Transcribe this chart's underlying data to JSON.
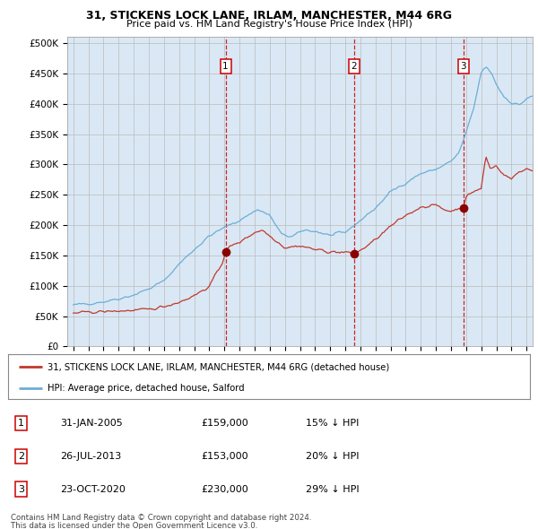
{
  "title1": "31, STICKENS LOCK LANE, IRLAM, MANCHESTER, M44 6RG",
  "title2": "Price paid vs. HM Land Registry's House Price Index (HPI)",
  "bg_color": "#dae8f5",
  "transactions": [
    {
      "num": 1,
      "date_label": "31-JAN-2005",
      "price": 159000,
      "pct": "15%",
      "x": 2005.08
    },
    {
      "num": 2,
      "date_label": "26-JUL-2013",
      "price": 153000,
      "pct": "20%",
      "x": 2013.57
    },
    {
      "num": 3,
      "date_label": "23-OCT-2020",
      "price": 230000,
      "pct": "29%",
      "x": 2020.81
    }
  ],
  "legend_label_red": "31, STICKENS LOCK LANE, IRLAM, MANCHESTER, M44 6RG (detached house)",
  "legend_label_blue": "HPI: Average price, detached house, Salford",
  "footer1": "Contains HM Land Registry data © Crown copyright and database right 2024.",
  "footer2": "This data is licensed under the Open Government Licence v3.0.",
  "ylim": [
    0,
    510000
  ],
  "xlim": [
    1994.6,
    2025.4
  ],
  "hpi_waypoints": [
    [
      1995.0,
      68000
    ],
    [
      1996.0,
      71000
    ],
    [
      1997.0,
      74000
    ],
    [
      1998.0,
      79000
    ],
    [
      1999.0,
      85000
    ],
    [
      2000.0,
      95000
    ],
    [
      2001.0,
      108000
    ],
    [
      2002.0,
      136000
    ],
    [
      2003.0,
      160000
    ],
    [
      2004.0,
      182000
    ],
    [
      2005.0,
      196000
    ],
    [
      2006.0,
      208000
    ],
    [
      2007.2,
      226000
    ],
    [
      2008.0,
      216000
    ],
    [
      2008.8,
      184000
    ],
    [
      2009.5,
      181000
    ],
    [
      2010.3,
      192000
    ],
    [
      2011.0,
      190000
    ],
    [
      2012.0,
      183000
    ],
    [
      2013.0,
      188000
    ],
    [
      2014.0,
      208000
    ],
    [
      2015.0,
      228000
    ],
    [
      2016.0,
      255000
    ],
    [
      2017.0,
      270000
    ],
    [
      2018.0,
      285000
    ],
    [
      2019.0,
      292000
    ],
    [
      2020.0,
      305000
    ],
    [
      2020.5,
      318000
    ],
    [
      2021.0,
      352000
    ],
    [
      2021.5,
      392000
    ],
    [
      2022.0,
      452000
    ],
    [
      2022.3,
      460000
    ],
    [
      2022.7,
      450000
    ],
    [
      2023.0,
      432000
    ],
    [
      2023.5,
      412000
    ],
    [
      2024.0,
      402000
    ],
    [
      2024.5,
      398000
    ],
    [
      2025.0,
      408000
    ],
    [
      2025.4,
      412000
    ]
  ],
  "red_waypoints": [
    [
      1995.0,
      55000
    ],
    [
      1996.0,
      56500
    ],
    [
      1997.0,
      57500
    ],
    [
      1998.0,
      58500
    ],
    [
      1999.0,
      59500
    ],
    [
      2000.0,
      61000
    ],
    [
      2001.0,
      66000
    ],
    [
      2002.0,
      73000
    ],
    [
      2003.0,
      84000
    ],
    [
      2004.0,
      99000
    ],
    [
      2004.9,
      140000
    ],
    [
      2005.08,
      159000
    ],
    [
      2005.5,
      166000
    ],
    [
      2006.0,
      172000
    ],
    [
      2007.0,
      188000
    ],
    [
      2007.5,
      192000
    ],
    [
      2008.5,
      173000
    ],
    [
      2009.0,
      163000
    ],
    [
      2010.0,
      166000
    ],
    [
      2011.0,
      160000
    ],
    [
      2012.0,
      156000
    ],
    [
      2013.0,
      155000
    ],
    [
      2013.57,
      153000
    ],
    [
      2014.0,
      158000
    ],
    [
      2015.0,
      176000
    ],
    [
      2016.0,
      198000
    ],
    [
      2017.0,
      216000
    ],
    [
      2018.0,
      230000
    ],
    [
      2019.0,
      233000
    ],
    [
      2019.5,
      226000
    ],
    [
      2020.0,
      223000
    ],
    [
      2020.81,
      230000
    ],
    [
      2021.0,
      246000
    ],
    [
      2021.5,
      256000
    ],
    [
      2022.0,
      260000
    ],
    [
      2022.3,
      313000
    ],
    [
      2022.6,
      293000
    ],
    [
      2023.0,
      298000
    ],
    [
      2023.5,
      283000
    ],
    [
      2024.0,
      276000
    ],
    [
      2024.5,
      288000
    ],
    [
      2025.0,
      293000
    ],
    [
      2025.4,
      290000
    ]
  ]
}
